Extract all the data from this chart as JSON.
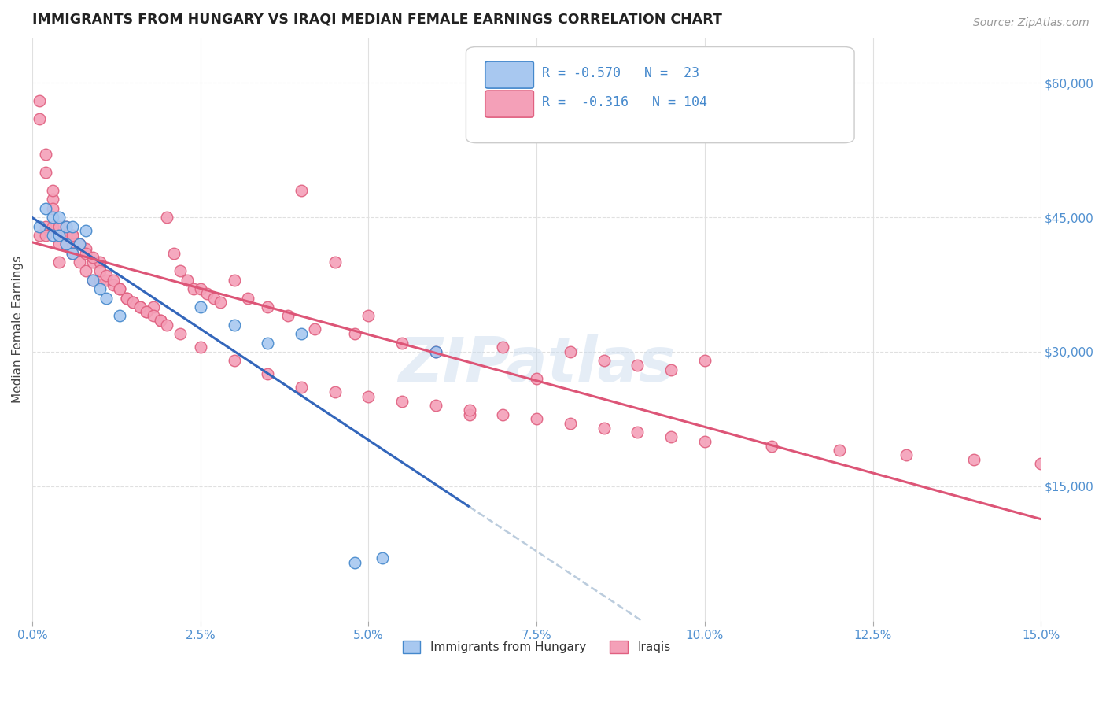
{
  "title": "IMMIGRANTS FROM HUNGARY VS IRAQI MEDIAN FEMALE EARNINGS CORRELATION CHART",
  "source": "Source: ZipAtlas.com",
  "ylabel": "Median Female Earnings",
  "ytick_labels": [
    "$15,000",
    "$30,000",
    "$45,000",
    "$60,000"
  ],
  "ytick_values": [
    15000,
    30000,
    45000,
    60000
  ],
  "xmin": 0.0,
  "xmax": 0.15,
  "ymin": 0,
  "ymax": 65000,
  "legend_hungary_R": "-0.570",
  "legend_hungary_N": "23",
  "legend_iraqi_R": "-0.316",
  "legend_iraqi_N": "104",
  "legend_hungary_label": "Immigrants from Hungary",
  "legend_iraqi_label": "Iraqis",
  "color_hungary_face": "#a8c8f0",
  "color_iraqi_face": "#f4a0b8",
  "color_hungary_edge": "#4488cc",
  "color_iraqi_edge": "#e06080",
  "color_hungary_line": "#3366bb",
  "color_iraqi_line": "#dd5577",
  "color_extrapolated": "#bbccdd",
  "watermark_color": "#ccddef",
  "background_color": "#ffffff",
  "hungary_x": [
    0.001,
    0.002,
    0.003,
    0.003,
    0.004,
    0.004,
    0.005,
    0.005,
    0.006,
    0.006,
    0.007,
    0.008,
    0.009,
    0.01,
    0.011,
    0.013,
    0.035,
    0.04,
    0.06,
    0.052,
    0.048,
    0.03,
    0.025
  ],
  "hungary_y": [
    44000,
    46000,
    45000,
    43000,
    45000,
    43000,
    44000,
    42000,
    44000,
    41000,
    42000,
    43500,
    38000,
    37000,
    36000,
    34000,
    31000,
    32000,
    30000,
    7000,
    6500,
    33000,
    35000
  ],
  "iraqi_x": [
    0.001,
    0.001,
    0.002,
    0.002,
    0.002,
    0.003,
    0.003,
    0.003,
    0.004,
    0.004,
    0.004,
    0.005,
    0.005,
    0.005,
    0.006,
    0.006,
    0.006,
    0.007,
    0.007,
    0.008,
    0.008,
    0.009,
    0.009,
    0.01,
    0.01,
    0.011,
    0.012,
    0.013,
    0.014,
    0.015,
    0.016,
    0.017,
    0.018,
    0.019,
    0.02,
    0.021,
    0.022,
    0.023,
    0.024,
    0.025,
    0.026,
    0.027,
    0.028,
    0.03,
    0.032,
    0.035,
    0.038,
    0.04,
    0.042,
    0.045,
    0.048,
    0.05,
    0.055,
    0.06,
    0.065,
    0.07,
    0.075,
    0.08,
    0.085,
    0.09,
    0.095,
    0.1,
    0.001,
    0.002,
    0.003,
    0.004,
    0.005,
    0.006,
    0.007,
    0.008,
    0.009,
    0.01,
    0.011,
    0.012,
    0.013,
    0.014,
    0.015,
    0.016,
    0.017,
    0.018,
    0.019,
    0.02,
    0.022,
    0.025,
    0.03,
    0.035,
    0.04,
    0.045,
    0.05,
    0.055,
    0.06,
    0.065,
    0.07,
    0.075,
    0.08,
    0.085,
    0.09,
    0.095,
    0.1,
    0.11,
    0.12,
    0.13,
    0.14,
    0.15
  ],
  "iraqi_y": [
    58000,
    43000,
    52000,
    44000,
    43000,
    47000,
    46000,
    44000,
    43000,
    42000,
    40000,
    44000,
    43000,
    42000,
    43000,
    42000,
    41000,
    42000,
    40000,
    41500,
    39000,
    40000,
    38000,
    40000,
    38000,
    38000,
    37500,
    37000,
    36000,
    35500,
    35000,
    34500,
    35000,
    33500,
    45000,
    41000,
    39000,
    38000,
    37000,
    37000,
    36500,
    36000,
    35500,
    38000,
    36000,
    35000,
    34000,
    48000,
    32500,
    40000,
    32000,
    34000,
    31000,
    30000,
    23000,
    30500,
    27000,
    30000,
    29000,
    28500,
    28000,
    29000,
    56000,
    50000,
    48000,
    44000,
    43000,
    43000,
    42000,
    41000,
    40500,
    39000,
    38500,
    38000,
    37000,
    36000,
    35500,
    35000,
    34500,
    34000,
    33500,
    33000,
    32000,
    30500,
    29000,
    27500,
    26000,
    25500,
    25000,
    24500,
    24000,
    23500,
    23000,
    22500,
    22000,
    21500,
    21000,
    20500,
    20000,
    19500,
    19000,
    18500,
    18000,
    17500
  ]
}
